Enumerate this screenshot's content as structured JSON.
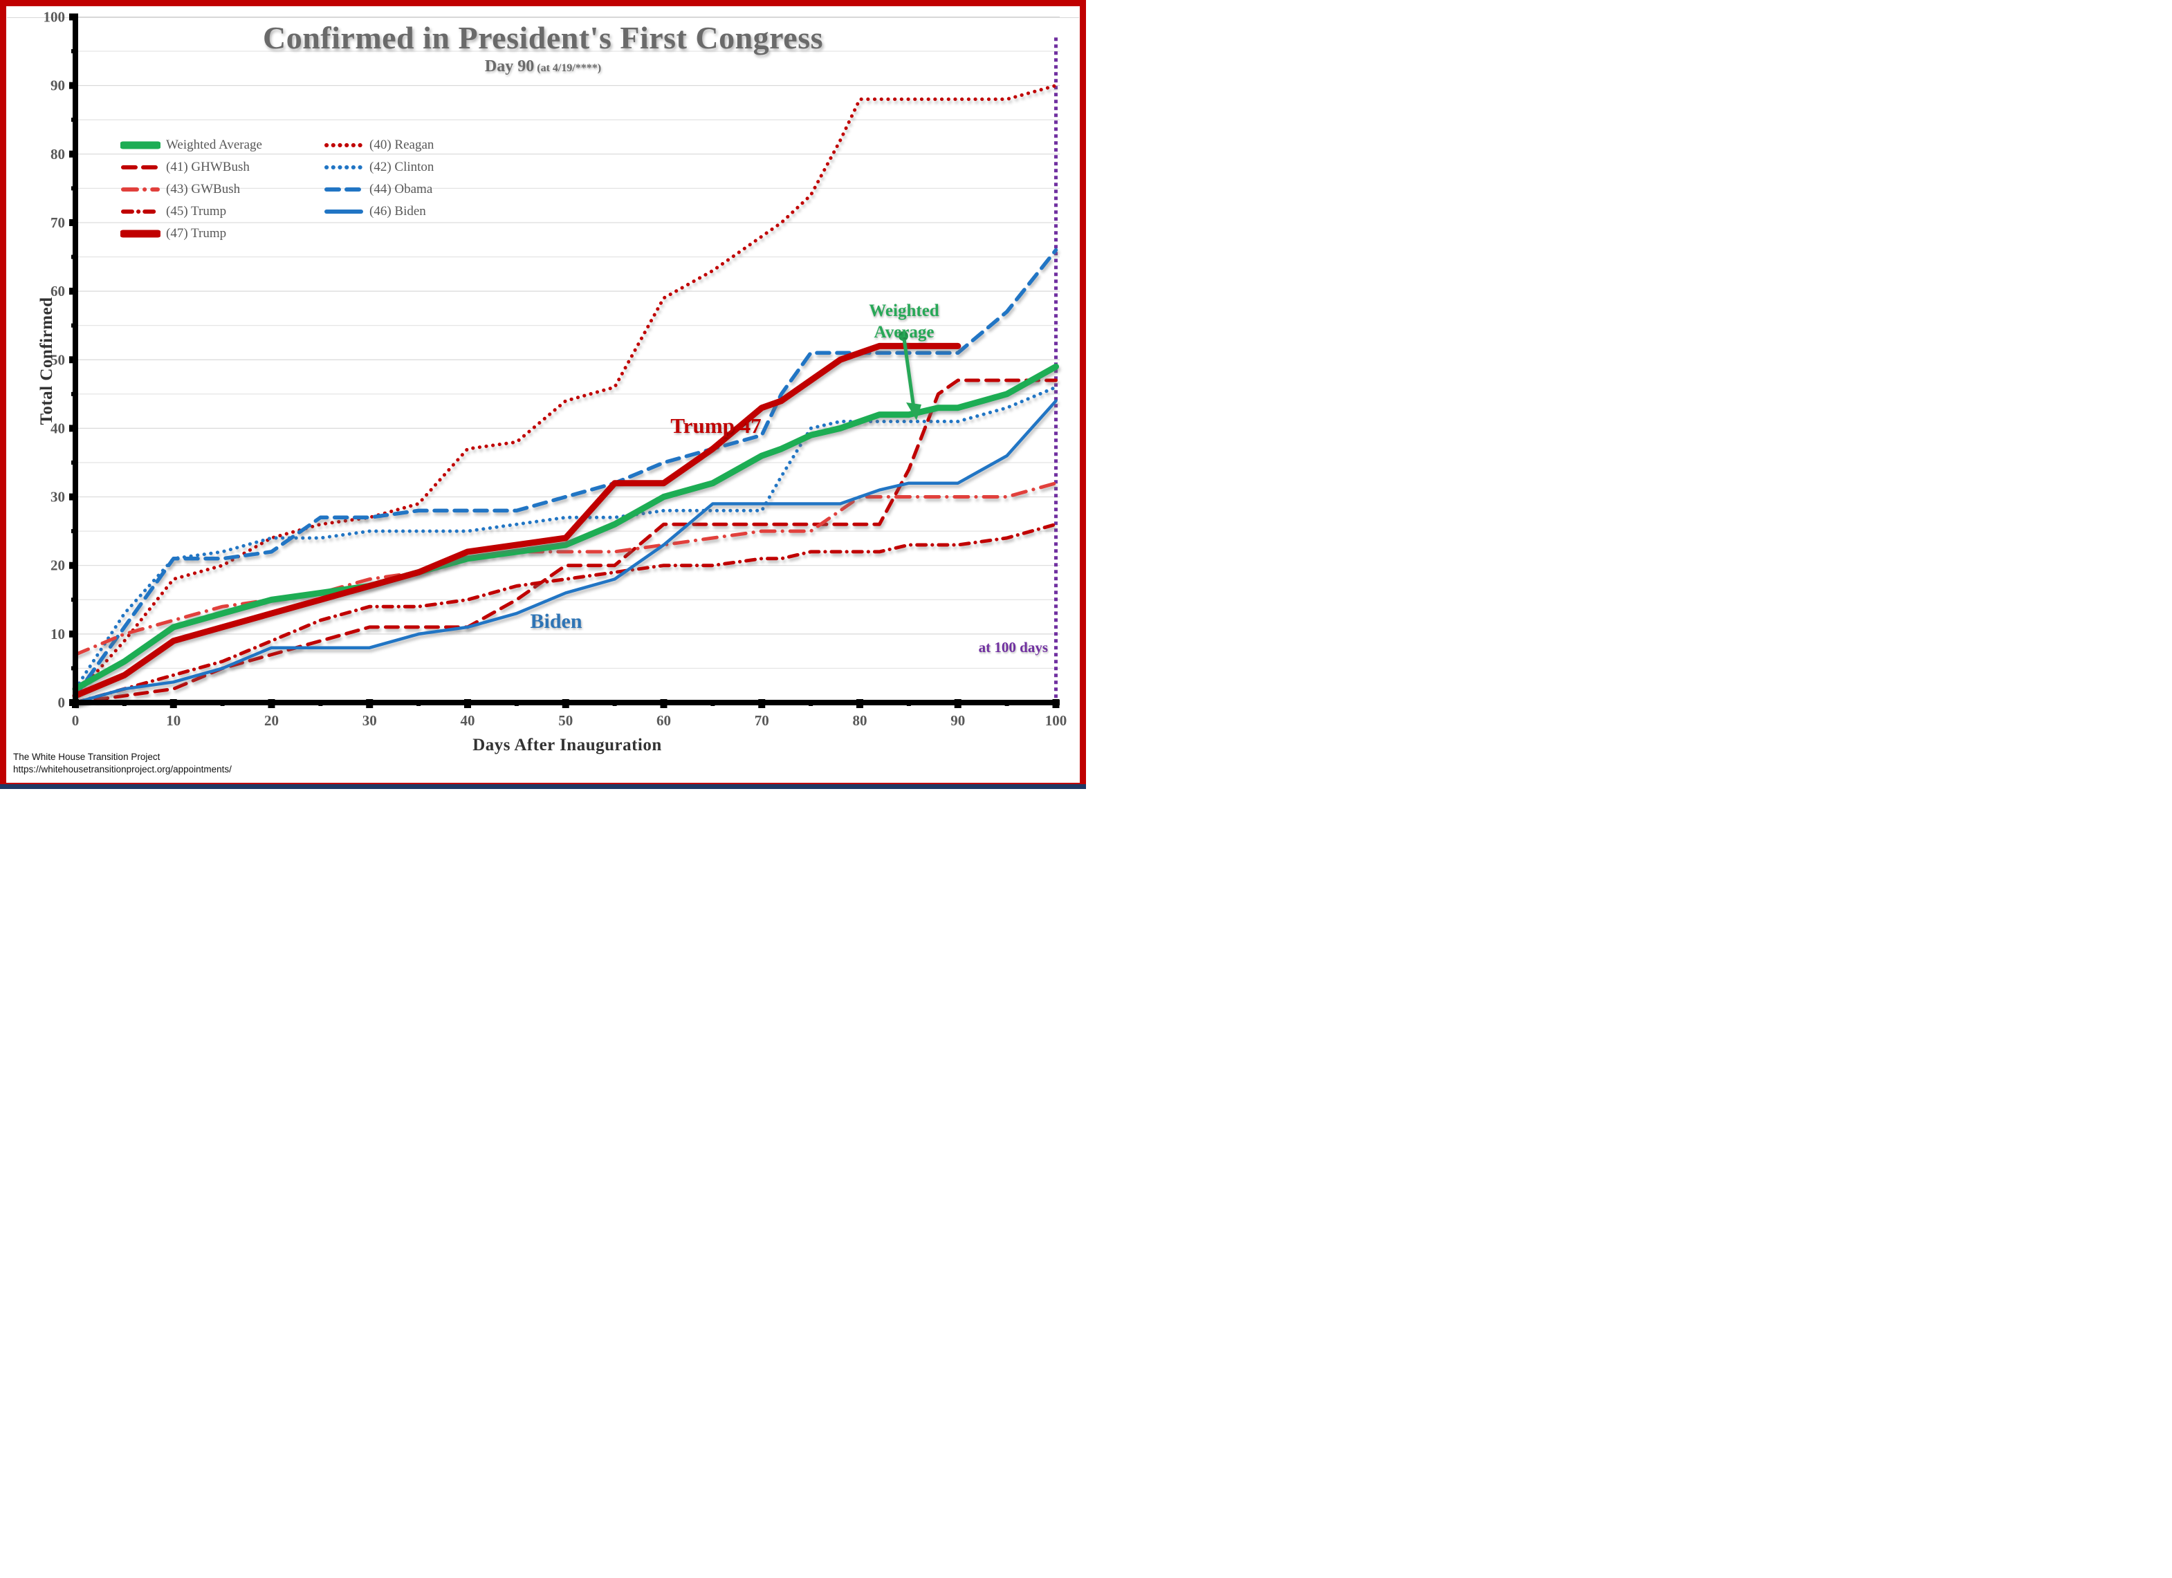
{
  "page": {
    "border_color": "#C00000",
    "bottom_strip_color": "#1F3864",
    "background": "#FFFFFF"
  },
  "header": {
    "title": "Confirmed in President's First Congress",
    "subtitle_day": "Day 90",
    "subtitle_note": "(at 4/19/****)",
    "title_color": "#6A6A6A"
  },
  "annotations": {
    "weighted_average_line1": "Weighted",
    "weighted_average_line2": "Average",
    "weighted_average_color": "#27A857",
    "trump47_text": "Trump 47",
    "trump47_color": "#C00000",
    "biden_text": "Biden",
    "biden_color": "#2E74B5",
    "at100_text": "at 100 days",
    "at100_color": "#7030A0"
  },
  "footer": {
    "line1": "The White House Transition Project",
    "line2": "https://whitehousetransitionproject.org/appointments/"
  },
  "chart_data": {
    "type": "line",
    "title": "Confirmed in President's First Congress",
    "subtitle": "Day 90 (at 4/19/****)",
    "xlabel": "Days After Inauguration",
    "ylabel": "Total Confirmed",
    "xlim": [
      0,
      100
    ],
    "ylim": [
      0,
      100
    ],
    "x_ticks": [
      0,
      10,
      20,
      30,
      40,
      50,
      60,
      70,
      80,
      90,
      100
    ],
    "y_ticks": [
      0,
      10,
      20,
      30,
      40,
      50,
      60,
      70,
      80,
      90,
      100
    ],
    "grid": "horizontal, every 5 units, light gray",
    "legend_position": "upper-left inside plot, two columns",
    "reference_line": {
      "x": 100,
      "color": "#7030A0",
      "style": "square-dotted",
      "label": "at 100 days"
    },
    "x": [
      0,
      5,
      10,
      15,
      20,
      25,
      30,
      35,
      40,
      45,
      50,
      55,
      60,
      65,
      70,
      72,
      75,
      78,
      80,
      82,
      85,
      88,
      90,
      95,
      100
    ],
    "series": [
      {
        "key": "weighted_average",
        "label": "Weighted Average",
        "color": "#1DAD54",
        "style": "solid",
        "width": 9,
        "values": [
          2,
          6,
          11,
          13,
          15,
          16,
          17,
          19,
          21,
          22,
          23,
          26,
          30,
          32,
          36,
          37,
          39,
          40,
          41,
          42,
          42,
          43,
          43,
          45,
          49
        ]
      },
      {
        "key": "ghwbush41",
        "label": "(41) GHWBush",
        "color": "#C00000",
        "style": "dashed",
        "width": 5,
        "values": [
          0,
          1,
          2,
          5,
          7,
          9,
          11,
          11,
          11,
          15,
          20,
          20,
          26,
          26,
          26,
          26,
          26,
          26,
          26,
          26,
          34,
          45,
          47,
          47,
          47
        ]
      },
      {
        "key": "gwbush43",
        "label": "(43) GWBush",
        "color": "#E1403C",
        "style": "dashdot",
        "width": 5,
        "values": [
          7,
          10,
          12,
          14,
          15,
          16,
          18,
          19,
          21,
          22,
          22,
          22,
          23,
          24,
          25,
          25,
          25,
          28,
          30,
          30,
          30,
          30,
          30,
          30,
          32
        ]
      },
      {
        "key": "trump45",
        "label": "(45) Trump",
        "color": "#C00000",
        "style": "dashdot2",
        "width": 5,
        "values": [
          0,
          2,
          4,
          6,
          9,
          12,
          14,
          14,
          15,
          17,
          18,
          19,
          20,
          20,
          21,
          21,
          22,
          22,
          22,
          22,
          23,
          23,
          23,
          24,
          26
        ]
      },
      {
        "key": "trump47",
        "label": "(47) Trump",
        "color": "#C00000",
        "style": "solid",
        "width": 9,
        "values": [
          1,
          4,
          9,
          11,
          13,
          15,
          17,
          19,
          22,
          23,
          24,
          32,
          32,
          37,
          43,
          44,
          47,
          50,
          51,
          52,
          52,
          52,
          52,
          null,
          null
        ]
      },
      {
        "key": "reagan40",
        "label": "(40) Reagan",
        "color": "#C00000",
        "style": "dotted",
        "width": 5,
        "values": [
          1,
          9,
          18,
          20,
          24,
          26,
          27,
          29,
          37,
          38,
          44,
          46,
          59,
          63,
          68,
          70,
          74,
          82,
          88,
          88,
          88,
          88,
          88,
          88,
          90
        ]
      },
      {
        "key": "clinton42",
        "label": "(42) Clinton",
        "color": "#2175C4",
        "style": "dotted",
        "width": 5,
        "values": [
          2,
          13,
          21,
          22,
          24,
          24,
          25,
          25,
          25,
          26,
          27,
          27,
          28,
          28,
          28,
          33,
          40,
          41,
          41,
          41,
          41,
          41,
          41,
          43,
          46
        ]
      },
      {
        "key": "obama44",
        "label": "(44) Obama",
        "color": "#2175C4",
        "style": "dashed",
        "width": 5.5,
        "values": [
          1,
          11,
          21,
          21,
          22,
          27,
          27,
          28,
          28,
          28,
          30,
          32,
          35,
          37,
          39,
          45,
          51,
          51,
          51,
          51,
          51,
          51,
          51,
          57,
          66
        ]
      },
      {
        "key": "biden46",
        "label": "(46) Biden",
        "color": "#2175C4",
        "style": "solid",
        "width": 4.5,
        "values": [
          0,
          2,
          3,
          5,
          8,
          8,
          8,
          10,
          11,
          13,
          16,
          18,
          23,
          29,
          29,
          29,
          29,
          29,
          30,
          31,
          32,
          32,
          32,
          36,
          44
        ]
      }
    ],
    "legend_left_column": [
      0,
      1,
      2,
      3,
      4
    ],
    "legend_right_column": [
      5,
      6,
      7,
      8
    ],
    "draw_order": [
      5,
      6,
      7,
      1,
      2,
      3,
      8,
      0,
      4
    ]
  }
}
